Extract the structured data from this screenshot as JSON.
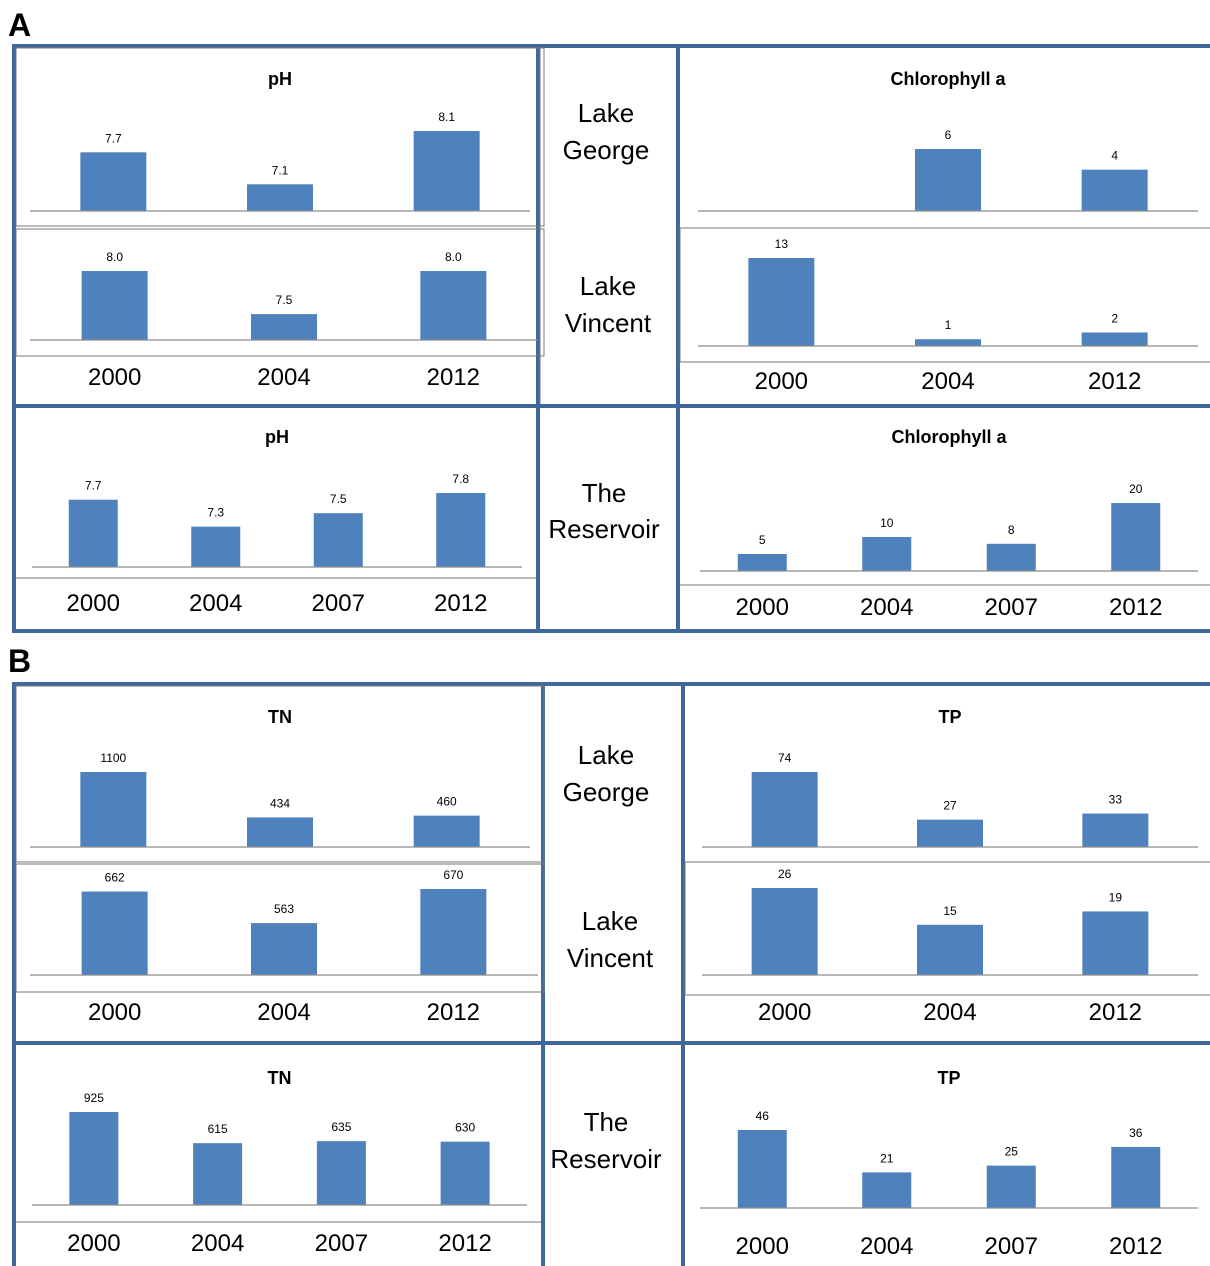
{
  "section_labels": {
    "a": "A",
    "b": "B"
  },
  "lake_labels": {
    "george": [
      "Lake",
      "George"
    ],
    "vincent": [
      "Lake",
      "Vincent"
    ],
    "reservoir": [
      "The",
      "Reservoir"
    ]
  },
  "colors": {
    "bar": "#4f81bd",
    "frame": "#41689a",
    "baseline": "#8c8c8c"
  },
  "chart_data": [
    {
      "id": "ph-george",
      "type": "bar",
      "title": "pH",
      "categories": [
        "2000",
        "2004",
        "2012"
      ],
      "values": [
        7.7,
        7.1,
        8.1
      ],
      "value_labels": [
        "7.7",
        "7.1",
        "8.1"
      ],
      "show_years": false
    },
    {
      "id": "ph-vincent",
      "type": "bar",
      "title": "",
      "categories": [
        "2000",
        "2004",
        "2012"
      ],
      "values": [
        8.0,
        7.5,
        8.0
      ],
      "value_labels": [
        "8.0",
        "7.5",
        "8.0"
      ],
      "show_years": true
    },
    {
      "id": "chl-george",
      "type": "bar",
      "title": "Chlorophyll a",
      "categories": [
        "2000",
        "2004",
        "2012"
      ],
      "values": [
        null,
        6,
        4
      ],
      "value_labels": [
        "",
        "6",
        "4"
      ],
      "show_years": false
    },
    {
      "id": "chl-vincent",
      "type": "bar",
      "title": "",
      "categories": [
        "2000",
        "2004",
        "2012"
      ],
      "values": [
        13,
        1,
        2
      ],
      "value_labels": [
        "13",
        "1",
        "2"
      ],
      "show_years": true
    },
    {
      "id": "ph-reservoir",
      "type": "bar",
      "title": "pH",
      "categories": [
        "2000",
        "2004",
        "2007",
        "2012"
      ],
      "values": [
        7.7,
        7.3,
        7.5,
        7.8
      ],
      "value_labels": [
        "7.7",
        "7.3",
        "7.5",
        "7.8"
      ],
      "show_years": true
    },
    {
      "id": "chl-reservoir",
      "type": "bar",
      "title": "Chlorophyll a",
      "categories": [
        "2000",
        "2004",
        "2007",
        "2012"
      ],
      "values": [
        5,
        10,
        8,
        20
      ],
      "value_labels": [
        "5",
        "10",
        "8",
        "20"
      ],
      "show_years": true
    },
    {
      "id": "tn-george",
      "type": "bar",
      "title": "TN",
      "categories": [
        "2000",
        "2004",
        "2012"
      ],
      "values": [
        1100,
        434,
        460
      ],
      "value_labels": [
        "1100",
        "434",
        "460"
      ],
      "show_years": false
    },
    {
      "id": "tn-vincent",
      "type": "bar",
      "title": "",
      "categories": [
        "2000",
        "2004",
        "2012"
      ],
      "values": [
        662,
        563,
        670
      ],
      "value_labels": [
        "662",
        "563",
        "670"
      ],
      "show_years": true
    },
    {
      "id": "tp-george",
      "type": "bar",
      "title": "TP",
      "categories": [
        "2000",
        "2004",
        "2012"
      ],
      "values": [
        74,
        27,
        33
      ],
      "value_labels": [
        "74",
        "27",
        "33"
      ],
      "show_years": false
    },
    {
      "id": "tp-vincent",
      "type": "bar",
      "title": "",
      "categories": [
        "2000",
        "2004",
        "2012"
      ],
      "values": [
        26,
        15,
        19
      ],
      "value_labels": [
        "26",
        "15",
        "19"
      ],
      "show_years": true
    },
    {
      "id": "tn-reservoir",
      "type": "bar",
      "title": "TN",
      "categories": [
        "2000",
        "2004",
        "2007",
        "2012"
      ],
      "values": [
        925,
        615,
        635,
        630
      ],
      "value_labels": [
        "925",
        "615",
        "635",
        "630"
      ],
      "show_years": true
    },
    {
      "id": "tp-reservoir",
      "type": "bar",
      "title": "TP",
      "categories": [
        "2000",
        "2004",
        "2007",
        "2012"
      ],
      "values": [
        46,
        21,
        25,
        36
      ],
      "value_labels": [
        "46",
        "21",
        "25",
        "36"
      ],
      "show_years": true
    }
  ]
}
